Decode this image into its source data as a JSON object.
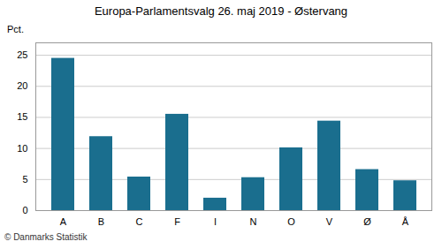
{
  "chart_data": {
    "type": "bar",
    "title": "Europa-Parlamentsvalg 26. maj 2019 - Østervang",
    "ylabel": "Pct.",
    "caption": "© Danmarks Statistik",
    "categories": [
      "A",
      "B",
      "C",
      "F",
      "I",
      "N",
      "O",
      "V",
      "Ø",
      "Å"
    ],
    "values": [
      24.5,
      11.9,
      5.4,
      15.5,
      2.0,
      5.3,
      10.1,
      14.4,
      6.6,
      4.8
    ],
    "color": "#1a6e8e",
    "ylim": [
      0,
      27
    ],
    "yticks": [
      0,
      5,
      10,
      15,
      20,
      25
    ],
    "grid": true
  }
}
